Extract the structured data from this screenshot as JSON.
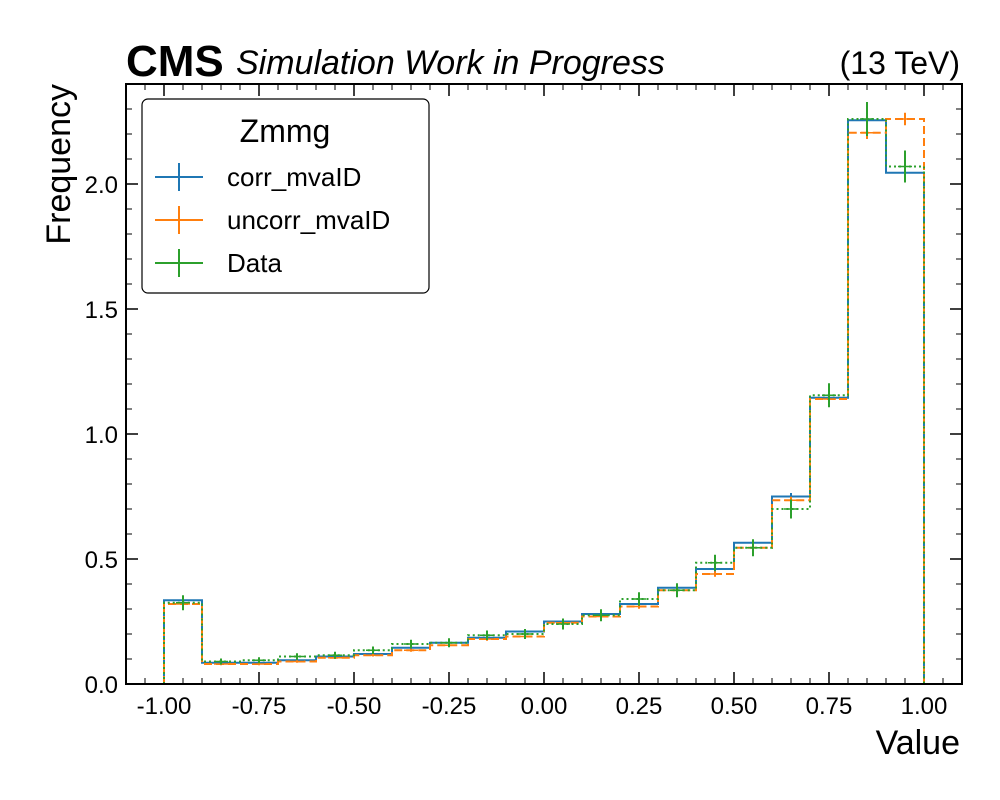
{
  "header": {
    "experiment": "CMS",
    "status": "Simulation Work in Progress",
    "energy": "(13 TeV)"
  },
  "chart_data": {
    "type": "histogram-step",
    "xlabel": "Value",
    "ylabel": "Frequency",
    "xlim": [
      -1.1,
      1.1
    ],
    "ylim": [
      0,
      2.4
    ],
    "xticks": [
      "-1.00",
      "-0.75",
      "-0.50",
      "-0.25",
      "0.00",
      "0.25",
      "0.50",
      "0.75",
      "1.00"
    ],
    "xtick_values": [
      -1.0,
      -0.75,
      -0.5,
      -0.25,
      0.0,
      0.25,
      0.5,
      0.75,
      1.0
    ],
    "yticks": [
      "0.0",
      "0.5",
      "1.0",
      "1.5",
      "2.0"
    ],
    "ytick_values": [
      0.0,
      0.5,
      1.0,
      1.5,
      2.0
    ],
    "bin_edges": [
      -1.0,
      -0.9,
      -0.8,
      -0.7,
      -0.6,
      -0.5,
      -0.4,
      -0.3,
      -0.2,
      -0.1,
      0.0,
      0.1,
      0.2,
      0.3,
      0.4,
      0.5,
      0.6,
      0.7,
      0.8,
      0.9,
      1.0
    ],
    "legend": {
      "title": "Zmmg",
      "position": "top-left"
    },
    "series": [
      {
        "name": "corr_mvaID",
        "color": "#1f77b4",
        "linestyle": "solid",
        "values": [
          0.335,
          0.085,
          0.085,
          0.095,
          0.11,
          0.12,
          0.145,
          0.165,
          0.185,
          0.21,
          0.25,
          0.28,
          0.32,
          0.385,
          0.46,
          0.565,
          0.75,
          1.145,
          2.255,
          2.045
        ],
        "errors": [
          0.012,
          0.005,
          0.005,
          0.005,
          0.005,
          0.005,
          0.006,
          0.006,
          0.007,
          0.007,
          0.008,
          0.008,
          0.009,
          0.01,
          0.011,
          0.012,
          0.014,
          0.018,
          0.025,
          0.023
        ]
      },
      {
        "name": "uncorr_mvaID",
        "color": "#ff7f0e",
        "linestyle": "dashed",
        "values": [
          0.32,
          0.08,
          0.08,
          0.09,
          0.105,
          0.115,
          0.135,
          0.155,
          0.18,
          0.19,
          0.245,
          0.27,
          0.31,
          0.375,
          0.44,
          0.545,
          0.735,
          1.14,
          2.205,
          2.26
        ],
        "errors": [
          0.012,
          0.005,
          0.005,
          0.005,
          0.005,
          0.005,
          0.006,
          0.006,
          0.007,
          0.007,
          0.008,
          0.008,
          0.009,
          0.01,
          0.011,
          0.012,
          0.014,
          0.018,
          0.025,
          0.025
        ]
      },
      {
        "name": "Data",
        "color": "#2ca02c",
        "linestyle": "dotted",
        "values": [
          0.325,
          0.09,
          0.095,
          0.11,
          0.115,
          0.135,
          0.16,
          0.165,
          0.195,
          0.2,
          0.24,
          0.275,
          0.34,
          0.375,
          0.485,
          0.545,
          0.7,
          1.155,
          2.26,
          2.07
        ],
        "errors": [
          0.03,
          0.012,
          0.012,
          0.013,
          0.014,
          0.015,
          0.017,
          0.018,
          0.019,
          0.02,
          0.022,
          0.024,
          0.027,
          0.028,
          0.032,
          0.034,
          0.038,
          0.048,
          0.068,
          0.064
        ]
      }
    ]
  }
}
